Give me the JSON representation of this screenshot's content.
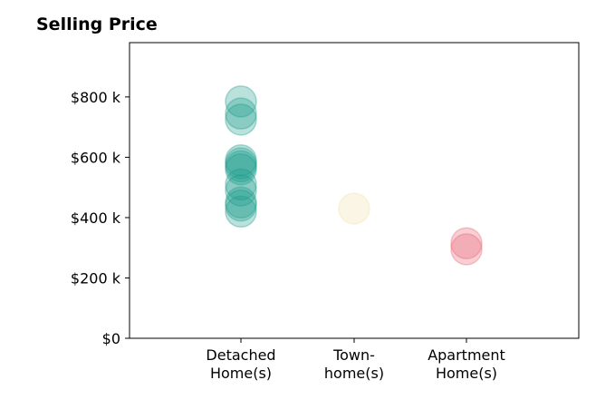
{
  "chart_data": {
    "type": "scatter",
    "title": "Selling Price",
    "xlabel": "",
    "ylabel": "",
    "categories": [
      "Detached\nHome(s)",
      "Town-\nhome(s)",
      "Apartment\nHome(s)"
    ],
    "yticks": [
      0,
      200000,
      400000,
      600000,
      800000
    ],
    "ytick_labels": [
      "$0",
      "$200 k",
      "$400 k",
      "$600 k",
      "$800 k"
    ],
    "ylim": [
      0,
      980000
    ],
    "grid": false,
    "series": [
      {
        "category": "Detached\nHome(s)",
        "color": "#1a9a8a",
        "values": [
          785000,
          745000,
          725000,
          590000,
          580000,
          570000,
          560000,
          510000,
          490000,
          450000,
          440000,
          420000
        ]
      },
      {
        "category": "Town-\nhome(s)",
        "color": "#f2dfa9",
        "values": [
          430000
        ]
      },
      {
        "category": "Apartment\nHome(s)",
        "color": "#e8606f",
        "values": [
          315000,
          295000
        ]
      }
    ]
  }
}
